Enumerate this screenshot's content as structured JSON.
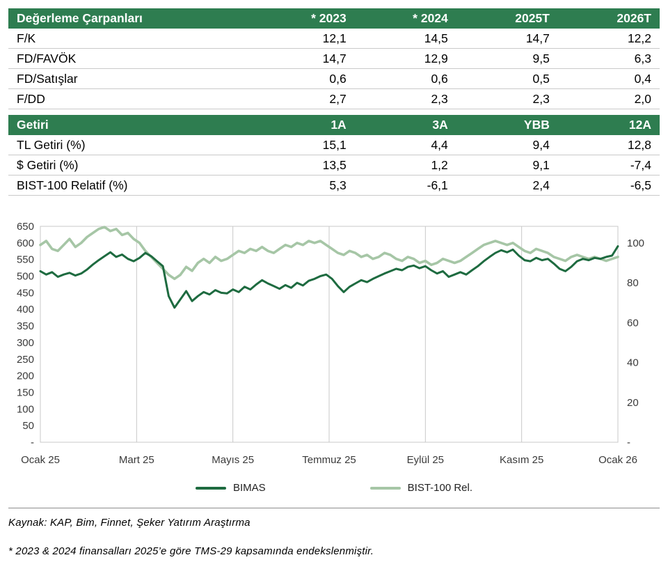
{
  "colors": {
    "header_green": "#2e7d50",
    "grid": "#c8c8c8",
    "axis_text": "#3a3a3a",
    "divider": "#8c8c8c"
  },
  "tables": [
    {
      "name": "valuation",
      "header": [
        "Değerleme Çarpanları",
        "* 2023",
        "* 2024",
        "2025T",
        "2026T"
      ],
      "rows": [
        [
          "F/K",
          "12,1",
          "14,5",
          "14,7",
          "12,2"
        ],
        [
          "FD/FAVÖK",
          "14,7",
          "12,9",
          "9,5",
          "6,3"
        ],
        [
          "FD/Satışlar",
          "0,6",
          "0,6",
          "0,5",
          "0,4"
        ],
        [
          "F/DD",
          "2,7",
          "2,3",
          "2,3",
          "2,0"
        ]
      ]
    },
    {
      "name": "returns",
      "header": [
        "Getiri",
        "1A",
        "3A",
        "YBB",
        "12A"
      ],
      "rows": [
        [
          "TL Getiri (%)",
          "15,1",
          "4,4",
          "9,4",
          "12,8"
        ],
        [
          "$ Getiri (%)",
          "13,5",
          "1,2",
          "9,1",
          "-7,4"
        ],
        [
          "BIST-100 Relatif (%)",
          "5,3",
          "-6,1",
          "2,4",
          "-6,5"
        ]
      ]
    }
  ],
  "chart_data": {
    "type": "line",
    "x_ticks": [
      "Ocak 25",
      "Mart 25",
      "Mayıs 25",
      "Temmuz 25",
      "Eylül 25",
      "Kasım 25",
      "Ocak 26"
    ],
    "left_axis": {
      "min": 0,
      "max": 650,
      "step": 50,
      "labels": [
        "650",
        "600",
        "550",
        "500",
        "450",
        "400",
        "350",
        "300",
        "250",
        "200",
        "150",
        "100",
        "50",
        "-"
      ]
    },
    "right_axis": {
      "values": [
        100,
        80,
        60,
        40,
        20,
        0
      ],
      "labels": [
        "100",
        "80",
        "60",
        "40",
        "20",
        "-"
      ],
      "scale_to_left": 6
    },
    "series": [
      {
        "name": "BIMAS",
        "axis": "left",
        "color": "#1e6b40",
        "width": 3,
        "values": [
          515,
          505,
          512,
          498,
          505,
          510,
          502,
          508,
          520,
          535,
          548,
          560,
          572,
          558,
          565,
          552,
          545,
          555,
          570,
          560,
          545,
          530,
          440,
          405,
          430,
          455,
          425,
          440,
          452,
          445,
          458,
          450,
          448,
          460,
          452,
          468,
          460,
          475,
          488,
          478,
          470,
          462,
          473,
          465,
          480,
          472,
          486,
          492,
          500,
          505,
          492,
          470,
          452,
          468,
          478,
          488,
          482,
          492,
          500,
          508,
          515,
          522,
          518,
          528,
          532,
          524,
          530,
          518,
          508,
          515,
          498,
          505,
          512,
          505,
          518,
          530,
          545,
          558,
          570,
          578,
          572,
          580,
          562,
          548,
          545,
          555,
          548,
          552,
          538,
          522,
          515,
          528,
          545,
          552,
          548,
          555,
          552,
          558,
          562,
          590
        ]
      },
      {
        "name": "BIST-100 Rel.",
        "axis": "right",
        "color": "#a6c6a6",
        "width": 3.6,
        "values": [
          99,
          101,
          97,
          96,
          99,
          102,
          98,
          100,
          103,
          105,
          107,
          108,
          106,
          107,
          104,
          105,
          102,
          100,
          96,
          93,
          90,
          87,
          84,
          82,
          84,
          88,
          86,
          90,
          92,
          90,
          93,
          91,
          92,
          94,
          96,
          95,
          97,
          96,
          98,
          96,
          95,
          97,
          99,
          98,
          100,
          99,
          101,
          100,
          101,
          99,
          97,
          95,
          94,
          96,
          95,
          93,
          94,
          92,
          93,
          95,
          94,
          92,
          91,
          93,
          92,
          90,
          91,
          89,
          90,
          92,
          91,
          90,
          91,
          93,
          95,
          97,
          99,
          100,
          101,
          100,
          99,
          100,
          98,
          96,
          95,
          97,
          96,
          95,
          93,
          92,
          91,
          93,
          94,
          93,
          92,
          93,
          92,
          91,
          92,
          93
        ]
      }
    ]
  },
  "footnotes": {
    "source": "Kaynak: KAP, Bim, Finnet, Şeker Yatırım Araştırma",
    "note": "* 2023 & 2024 finansalları 2025’e göre TMS-29 kapsamında endekslenmiştir."
  }
}
